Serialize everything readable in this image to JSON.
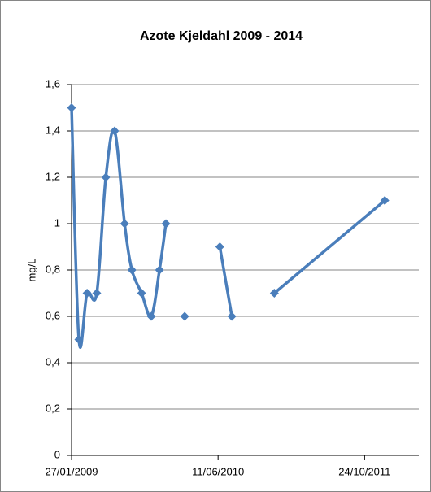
{
  "chart_data": {
    "type": "line",
    "title": "Azote Kjeldahl 2009 - 2014",
    "y_label": "mg/L",
    "x": [
      "2009-01-27",
      "2009-02-21",
      "2009-03-21",
      "2009-04-23",
      "2009-05-24",
      "2009-06-23",
      "2009-07-27",
      "2009-08-21",
      "2009-09-23",
      "2009-10-26",
      "2009-11-23",
      "2009-12-15",
      null,
      "2010-02-17",
      null,
      "2010-06-17",
      "2010-07-28",
      null,
      "2010-12-20",
      "2012-01-01"
    ],
    "values": [
      1.5,
      0.5,
      0.7,
      0.7,
      1.2,
      1.4,
      1.0,
      0.8,
      0.7,
      0.6,
      0.8,
      1.0,
      null,
      0.6,
      null,
      0.9,
      0.6,
      null,
      0.7,
      1.1
    ],
    "color": "#4a7ebb",
    "smooth": true,
    "marker": "diamond",
    "xlim": [
      "2009-01-27",
      "2012-04-26"
    ],
    "xticks": [
      {
        "value": "2009-01-27",
        "label": "27/01/2009"
      },
      {
        "value": "2010-06-11",
        "label": "11/06/2010"
      },
      {
        "value": "2011-10-24",
        "label": "24/10/2011"
      }
    ],
    "ylim": [
      0,
      1.6
    ],
    "yticks": [
      0,
      {
        "value": 0.2,
        "label": "0,2"
      },
      {
        "value": 0.4,
        "label": "0,4"
      },
      {
        "value": 0.6,
        "label": "0,6"
      },
      {
        "value": 0.8,
        "label": "0,8"
      },
      1,
      {
        "value": 1.2,
        "label": "1,2"
      },
      {
        "value": 1.4,
        "label": "1,4"
      },
      {
        "value": 1.6,
        "label": "1,6"
      }
    ],
    "grid": true
  }
}
